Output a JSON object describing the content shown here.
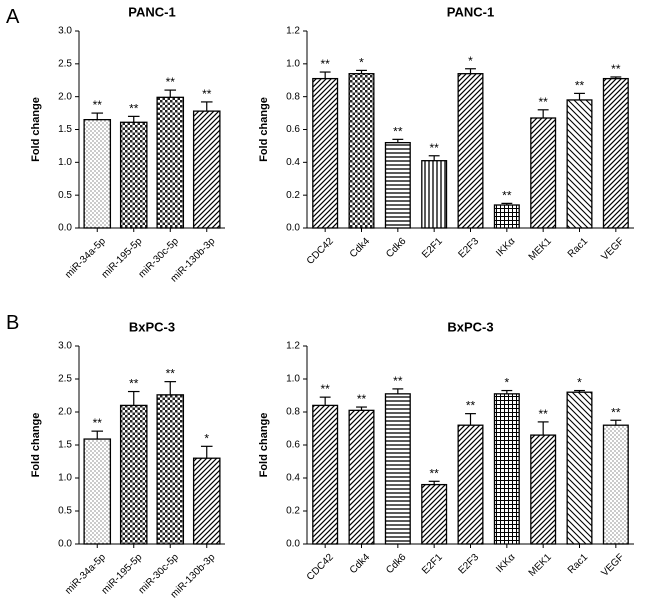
{
  "panels": [
    {
      "letter": "A"
    },
    {
      "letter": "B"
    }
  ],
  "chart_data": [
    {
      "type": "bar",
      "panel": "A",
      "title": "PANC-1",
      "xlabel": "",
      "ylabel": "Fold change",
      "ylim": [
        0,
        3.0
      ],
      "yticks": [
        "0.0",
        "0.5",
        "1.0",
        "1.5",
        "2.0",
        "2.5",
        "3.0"
      ],
      "categories": [
        "miR-34a-5p",
        "miR-195-5p",
        "miR-30c-5p",
        "miR-130b-3p"
      ],
      "values": [
        1.65,
        1.61,
        1.99,
        1.78
      ],
      "errors": [
        0.1,
        0.09,
        0.11,
        0.14
      ],
      "significance": [
        "**",
        "**",
        "**",
        "**"
      ],
      "patterns": [
        "dots",
        "checker",
        "checker",
        "diag"
      ]
    },
    {
      "type": "bar",
      "panel": "A",
      "title": "PANC-1",
      "xlabel": "",
      "ylabel": "Fold change",
      "ylim": [
        0,
        1.2
      ],
      "yticks": [
        "0.0",
        "0.2",
        "0.4",
        "0.6",
        "0.8",
        "1.0",
        "1.2"
      ],
      "categories": [
        "CDC42",
        "Cdk4",
        "Cdk6",
        "E2F1",
        "E2F3",
        "IKKα",
        "MEK1",
        "Rac1",
        "VEGF"
      ],
      "values": [
        0.91,
        0.94,
        0.52,
        0.41,
        0.94,
        0.14,
        0.67,
        0.78,
        0.91
      ],
      "errors": [
        0.04,
        0.02,
        0.02,
        0.03,
        0.03,
        0.01,
        0.05,
        0.04,
        0.01
      ],
      "significance": [
        "**",
        "*",
        "**",
        "**",
        "*",
        "**",
        "**",
        "**",
        "**"
      ],
      "patterns": [
        "diag",
        "checker",
        "horiz",
        "vert",
        "diag",
        "grid",
        "diag",
        "diagrev",
        "diag"
      ]
    },
    {
      "type": "bar",
      "panel": "B",
      "title": "BxPC-3",
      "xlabel": "",
      "ylabel": "Fold change",
      "ylim": [
        0,
        3.0
      ],
      "yticks": [
        "0.0",
        "0.5",
        "1.0",
        "1.5",
        "2.0",
        "2.5",
        "3.0"
      ],
      "categories": [
        "miR-34a-5p",
        "miR-195-5p",
        "miR-30c-5p",
        "miR-130b-3p"
      ],
      "values": [
        1.59,
        2.1,
        2.26,
        1.3
      ],
      "errors": [
        0.12,
        0.21,
        0.2,
        0.18
      ],
      "significance": [
        "**",
        "**",
        "**",
        "*"
      ],
      "patterns": [
        "dots",
        "checker",
        "checker",
        "diag"
      ]
    },
    {
      "type": "bar",
      "panel": "B",
      "title": "BxPC-3",
      "xlabel": "",
      "ylabel": "Fold change",
      "ylim": [
        0,
        1.2
      ],
      "yticks": [
        "0.0",
        "0.2",
        "0.4",
        "0.6",
        "0.8",
        "1.0",
        "1.2"
      ],
      "categories": [
        "CDC42",
        "Cdk4",
        "Cdk6",
        "E2F1",
        "E2F3",
        "IKKα",
        "MEK1",
        "Rac1",
        "VEGF"
      ],
      "values": [
        0.84,
        0.81,
        0.91,
        0.36,
        0.72,
        0.91,
        0.66,
        0.92,
        0.72
      ],
      "errors": [
        0.05,
        0.02,
        0.03,
        0.02,
        0.07,
        0.02,
        0.08,
        0.01,
        0.03
      ],
      "significance": [
        "**",
        "**",
        "**",
        "**",
        "**",
        "*",
        "**",
        "*",
        "**"
      ],
      "patterns": [
        "diag",
        "diag",
        "horiz",
        "diag",
        "diag",
        "grid",
        "diag",
        "diagrev",
        "dots"
      ]
    }
  ]
}
